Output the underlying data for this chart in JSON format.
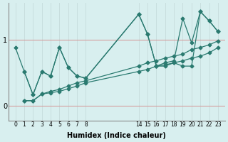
{
  "xlabel": "Humidex (Indice chaleur)",
  "background_color": "#d8efef",
  "grid_color_v": "#c8dede",
  "grid_color_h": "#d4a0a0",
  "line_color": "#2a7a70",
  "x_ticks_labels": [
    0,
    1,
    2,
    3,
    4,
    5,
    6,
    7,
    8,
    14,
    15,
    16,
    17,
    18,
    19,
    20,
    21,
    22,
    23
  ],
  "ylim": [
    -0.22,
    1.55
  ],
  "xlim": [
    -0.8,
    23.8
  ],
  "figsize": [
    3.2,
    2.0
  ],
  "dpi": 100,
  "series": [
    {
      "x": [
        0,
        1,
        2,
        3,
        4,
        5,
        6,
        7,
        8,
        14,
        15,
        16,
        17,
        18,
        19,
        20,
        21,
        22,
        23
      ],
      "y": [
        0.88,
        0.52,
        0.17,
        0.52,
        0.45,
        0.88,
        0.58,
        0.45,
        0.42,
        1.38,
        1.08,
        0.6,
        0.6,
        0.65,
        0.6,
        0.6,
        1.42,
        1.28,
        1.12
      ]
    },
    {
      "x": [
        1,
        2,
        3,
        4,
        5,
        6,
        7,
        8,
        14,
        15,
        16,
        17,
        18,
        19,
        20,
        21,
        22,
        23
      ],
      "y": [
        0.52,
        0.17,
        0.52,
        0.45,
        0.88,
        0.58,
        0.45,
        0.42,
        1.38,
        1.08,
        0.6,
        0.65,
        0.68,
        1.32,
        0.95,
        1.42,
        1.28,
        1.12
      ]
    },
    {
      "x": [
        1,
        2,
        3,
        4,
        5,
        6,
        7,
        8,
        14,
        15,
        16,
        17,
        18,
        19,
        20,
        21,
        22,
        23
      ],
      "y": [
        0.08,
        0.08,
        0.18,
        0.22,
        0.25,
        0.3,
        0.35,
        0.38,
        0.6,
        0.65,
        0.68,
        0.72,
        0.75,
        0.78,
        0.85,
        0.88,
        0.92,
        0.98
      ]
    },
    {
      "x": [
        1,
        2,
        3,
        4,
        5,
        6,
        7,
        8,
        14,
        15,
        16,
        17,
        18,
        19,
        20,
        21,
        22,
        23
      ],
      "y": [
        0.08,
        0.08,
        0.18,
        0.2,
        0.22,
        0.26,
        0.3,
        0.35,
        0.52,
        0.55,
        0.6,
        0.62,
        0.65,
        0.68,
        0.72,
        0.75,
        0.8,
        0.88
      ]
    }
  ]
}
